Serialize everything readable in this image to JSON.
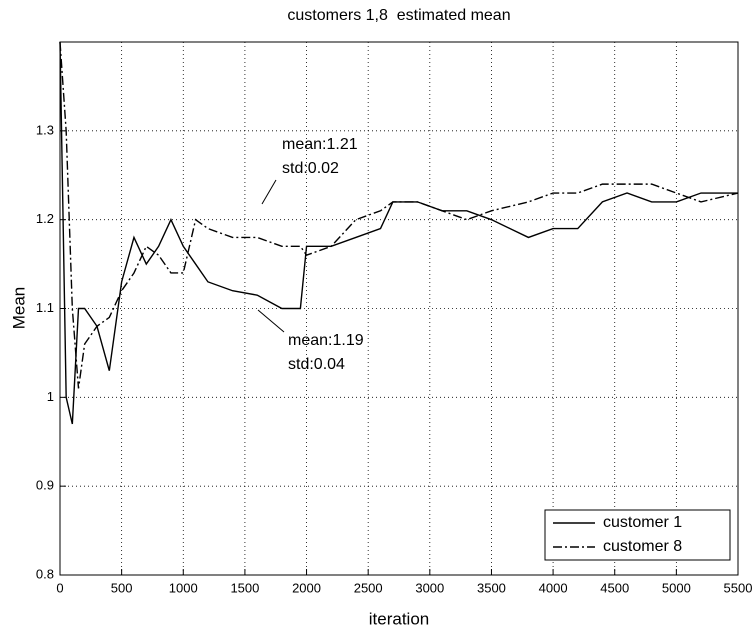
{
  "chart_data": {
    "type": "line",
    "title": "customers 1,8  estimated mean",
    "x_label": "iteration",
    "y_label": "Mean",
    "x": [
      0,
      50,
      100,
      150,
      200,
      300,
      400,
      500,
      600,
      700,
      800,
      900,
      1000,
      1100,
      1200,
      1400,
      1600,
      1800,
      1950,
      2000,
      2200,
      2400,
      2600,
      2700,
      2900,
      3100,
      3300,
      3500,
      3800,
      4000,
      4200,
      4400,
      4600,
      4800,
      5000,
      5200,
      5500
    ],
    "series": [
      {
        "name": "customer 1",
        "color": "#000000",
        "dash": "solid",
        "values": [
          1.4,
          1.0,
          0.97,
          1.1,
          1.1,
          1.08,
          1.03,
          1.13,
          1.18,
          1.15,
          1.17,
          1.2,
          1.17,
          1.15,
          1.13,
          1.12,
          1.115,
          1.1,
          1.1,
          1.17,
          1.17,
          1.18,
          1.19,
          1.22,
          1.22,
          1.21,
          1.21,
          1.2,
          1.18,
          1.19,
          1.19,
          1.22,
          1.23,
          1.22,
          1.22,
          1.23,
          1.23
        ]
      },
      {
        "name": "customer 8",
        "color": "#000000",
        "dash": "dashdot",
        "values": [
          1.4,
          1.3,
          1.1,
          1.01,
          1.06,
          1.08,
          1.09,
          1.12,
          1.14,
          1.17,
          1.16,
          1.14,
          1.14,
          1.2,
          1.19,
          1.18,
          1.18,
          1.17,
          1.17,
          1.16,
          1.17,
          1.2,
          1.21,
          1.22,
          1.22,
          1.21,
          1.2,
          1.21,
          1.22,
          1.23,
          1.23,
          1.24,
          1.24,
          1.24,
          1.23,
          1.22,
          1.23
        ]
      }
    ],
    "xlim": [
      0,
      5500
    ],
    "xticks": [
      0,
      500,
      1000,
      1500,
      2000,
      2500,
      3000,
      3500,
      4000,
      4500,
      5000,
      5500
    ],
    "ylim": [
      0.8,
      1.4
    ],
    "yticks": [
      0.8,
      0.9,
      1,
      1.1,
      1.2,
      1.3
    ],
    "grid": true,
    "legend_position": "lower right",
    "annotations": [
      {
        "lines": [
          "mean:1.21",
          "std:0.02"
        ]
      },
      {
        "lines": [
          "mean:1.19",
          "std:0.04"
        ]
      }
    ]
  }
}
